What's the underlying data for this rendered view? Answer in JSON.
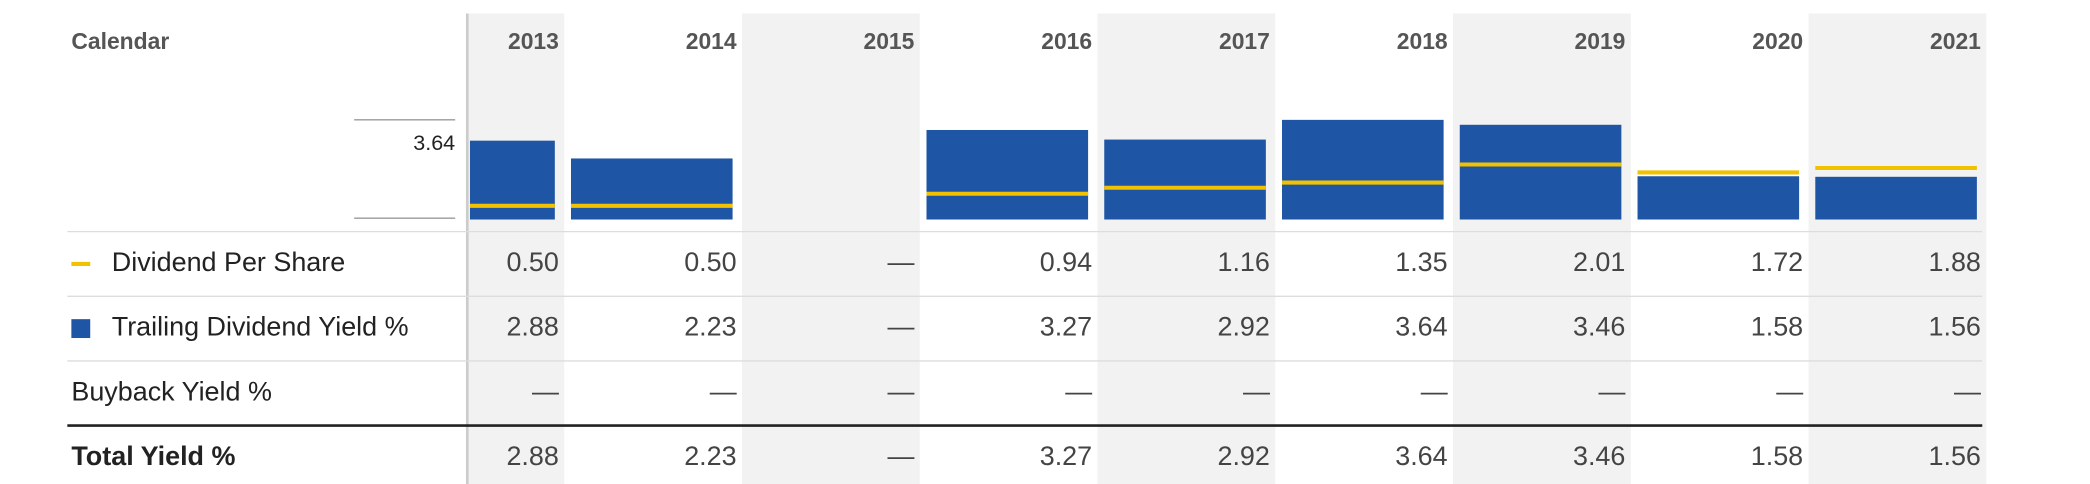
{
  "chart_data": {
    "type": "bar",
    "header": "Calendar",
    "categories": [
      "2013",
      "2014",
      "2015",
      "2016",
      "2017",
      "2018",
      "2019",
      "2020",
      "2021"
    ],
    "ylim": [
      0,
      3.64
    ],
    "yticks": [
      3.64
    ],
    "series": [
      {
        "name": "Dividend Per Share",
        "color": "#f2c200",
        "style": "level",
        "values": [
          0.5,
          0.5,
          null,
          0.94,
          1.16,
          1.35,
          2.01,
          1.72,
          1.88
        ],
        "value_labels": [
          "0.50",
          "0.50",
          "—",
          "0.94",
          "1.16",
          "1.35",
          "2.01",
          "1.72",
          "1.88"
        ]
      },
      {
        "name": "Trailing Dividend Yield %",
        "color": "#1f55a5",
        "style": "bar",
        "values": [
          2.88,
          2.23,
          null,
          3.27,
          2.92,
          3.64,
          3.46,
          1.58,
          1.56
        ],
        "value_labels": [
          "2.88",
          "2.23",
          "—",
          "3.27",
          "2.92",
          "3.64",
          "3.46",
          "1.58",
          "1.56"
        ]
      }
    ],
    "rows": [
      {
        "name": "Buyback Yield %",
        "value_labels": [
          "—",
          "—",
          "—",
          "—",
          "—",
          "—",
          "—",
          "—",
          "—"
        ]
      },
      {
        "name": "Total Yield %",
        "value_labels": [
          "2.88",
          "2.23",
          "—",
          "3.27",
          "2.92",
          "3.64",
          "3.46",
          "1.58",
          "1.56"
        ]
      }
    ]
  }
}
